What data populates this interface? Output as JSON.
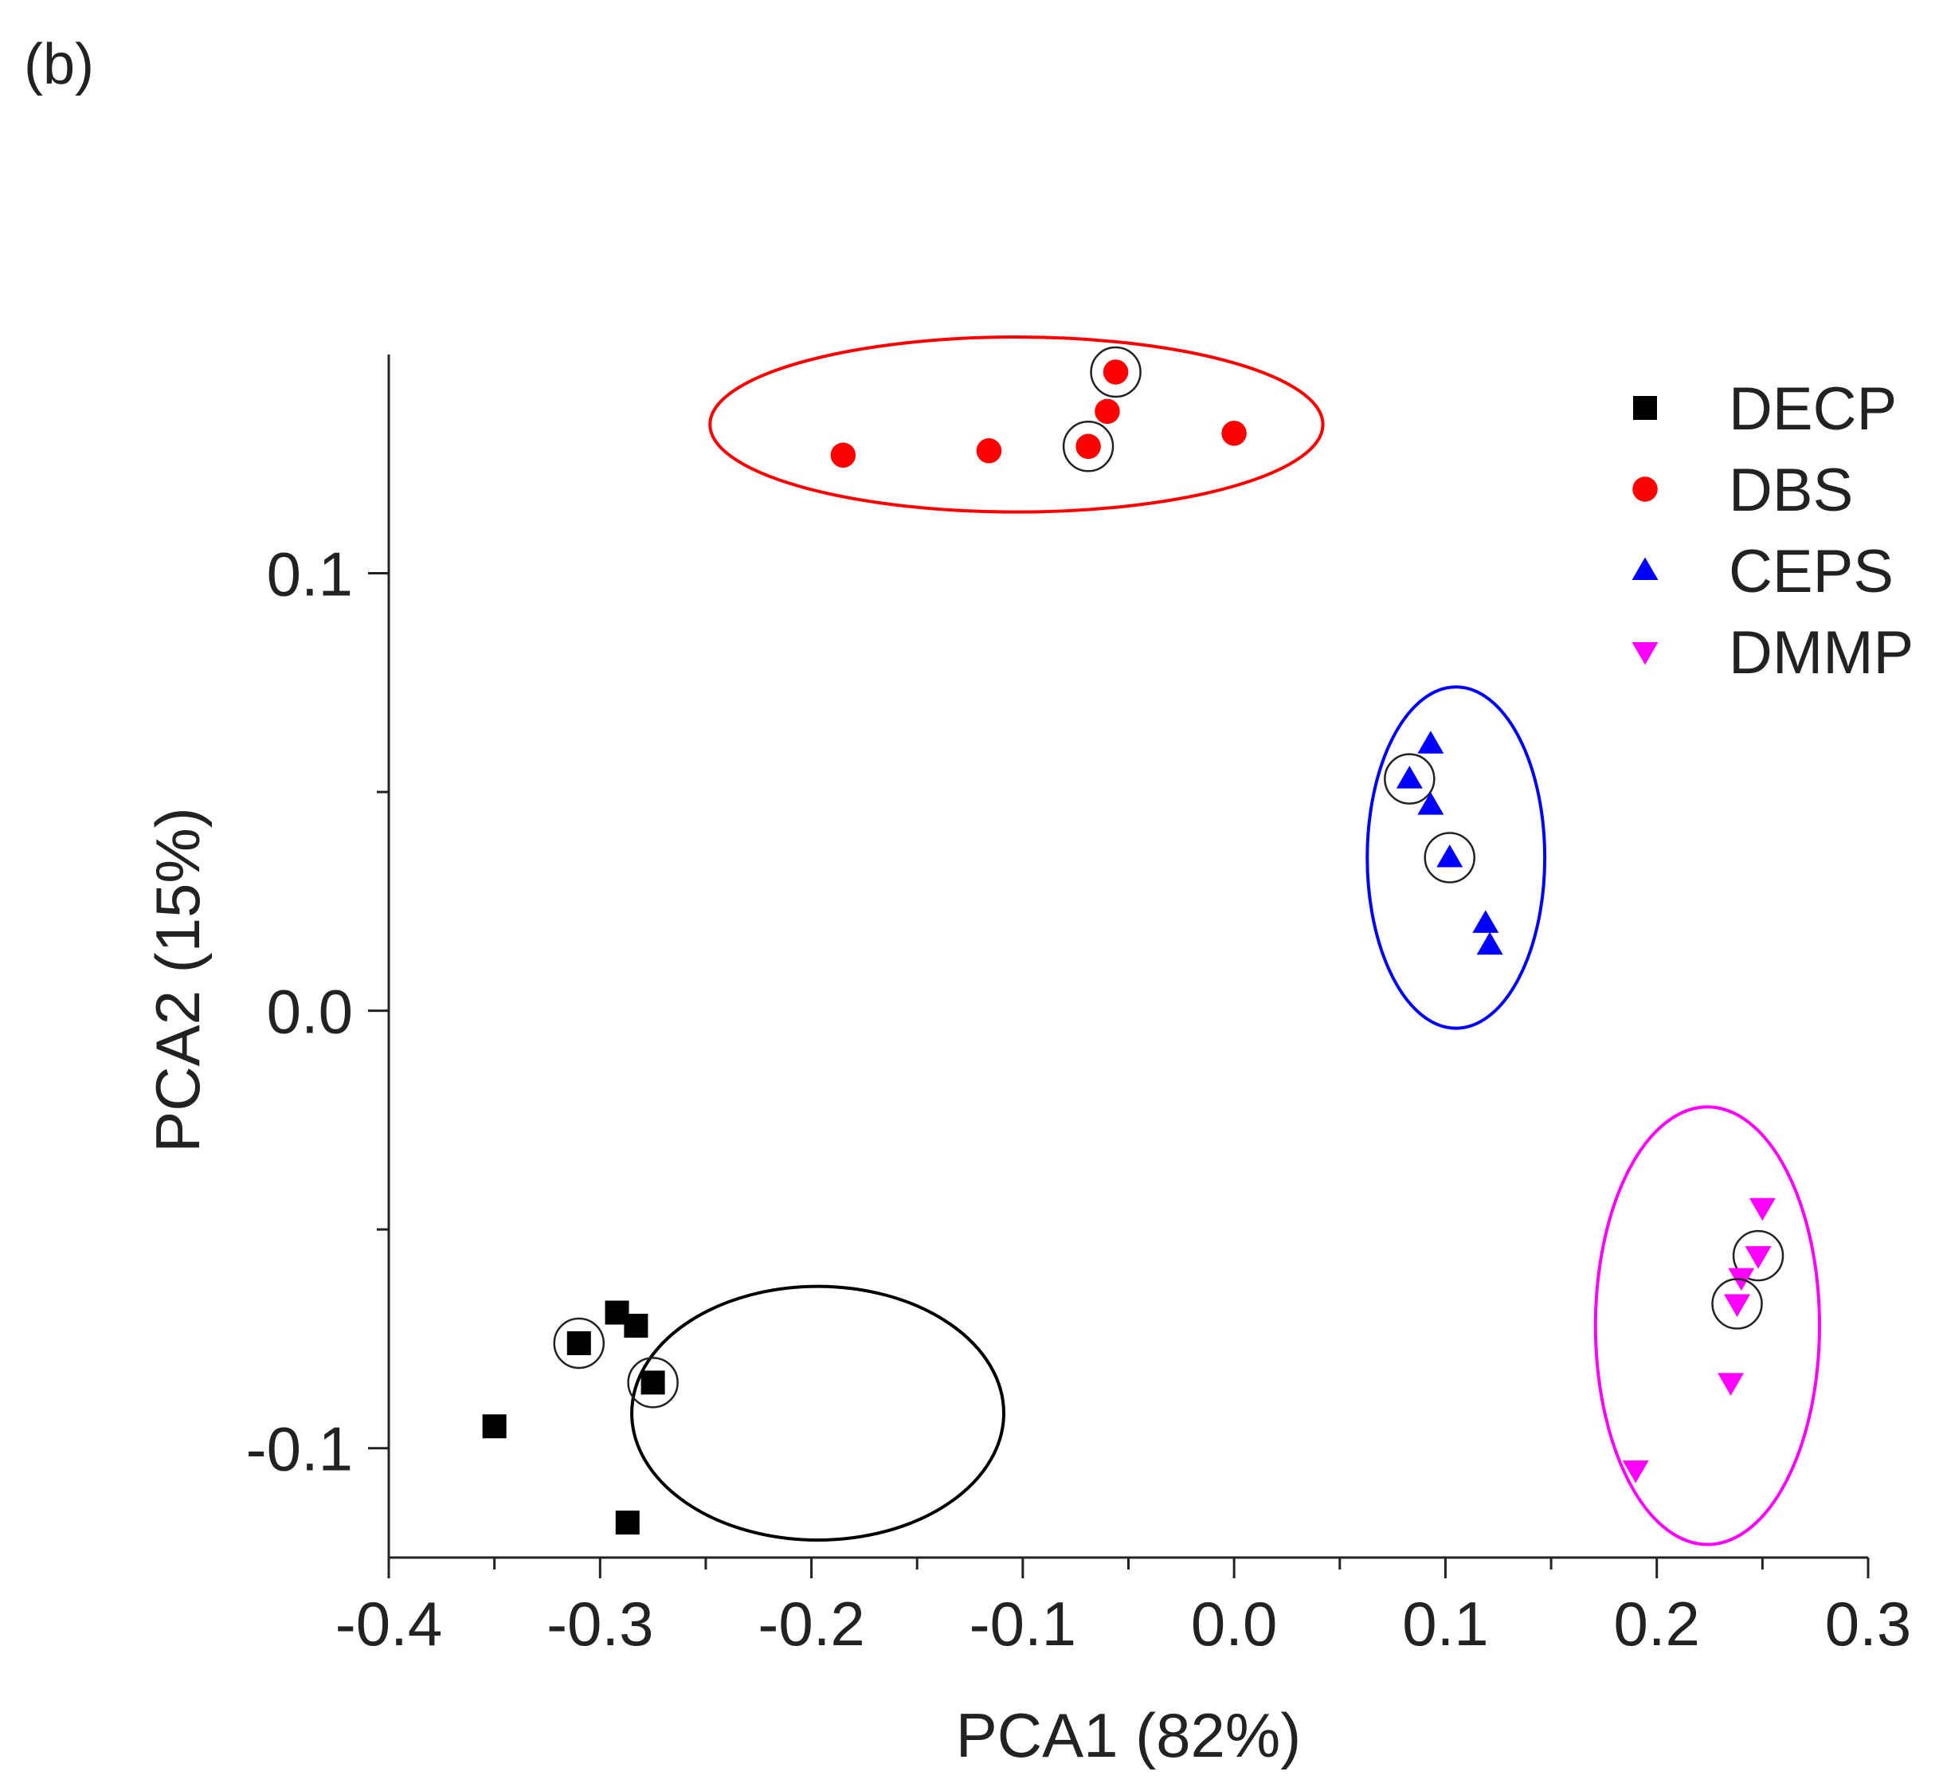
{
  "panel_label": "(b)",
  "chart_data": {
    "type": "scatter",
    "title": "",
    "xlabel": "PCA1 (82%)",
    "ylabel": "PCA2 (15%)",
    "xlim": [
      -0.4,
      0.3
    ],
    "ylim": [
      -0.125,
      0.15
    ],
    "xticks": [
      -0.4,
      -0.3,
      -0.2,
      -0.1,
      0.0,
      0.1,
      0.2,
      0.3
    ],
    "xtick_labels": [
      "-0.4",
      "-0.3",
      "-0.2",
      "-0.1",
      "0.0",
      "0.1",
      "0.2",
      "0.3"
    ],
    "xminor_ticks": [
      -0.35,
      -0.25,
      -0.15,
      -0.05,
      0.05,
      0.15,
      0.25
    ],
    "yticks": [
      -0.1,
      0.0,
      0.1
    ],
    "ytick_labels": [
      "-0.1",
      "0.0",
      "0.1"
    ],
    "yminor_ticks": [
      -0.05,
      0.05
    ],
    "grid": false,
    "legend_position": "top-right",
    "series": [
      {
        "name": "DECP",
        "marker": "square",
        "color": "#000000",
        "points": [
          [
            -0.35,
            -0.095
          ],
          [
            -0.31,
            -0.076
          ],
          [
            -0.292,
            -0.069
          ],
          [
            -0.283,
            -0.072
          ],
          [
            -0.275,
            -0.085
          ],
          [
            -0.287,
            -0.117
          ]
        ],
        "circled": [
          1,
          4
        ],
        "ellipse": {
          "cx": -0.197,
          "cy": -0.092,
          "rx": 0.088,
          "ry": 0.029,
          "color": "#000000"
        }
      },
      {
        "name": "DBS",
        "marker": "circle",
        "color": "#ff0000",
        "points": [
          [
            -0.185,
            0.127
          ],
          [
            -0.116,
            0.128
          ],
          [
            -0.069,
            0.129
          ],
          [
            -0.06,
            0.137
          ],
          [
            -0.056,
            0.146
          ],
          [
            0.0,
            0.132
          ]
        ],
        "circled": [
          2,
          4
        ],
        "ellipse": {
          "cx": -0.103,
          "cy": 0.134,
          "rx": 0.145,
          "ry": 0.02,
          "color": "#ff0000"
        }
      },
      {
        "name": "CEPS",
        "marker": "triangle-up",
        "color": "#0000ff",
        "points": [
          [
            0.093,
            0.061
          ],
          [
            0.083,
            0.053
          ],
          [
            0.093,
            0.047
          ],
          [
            0.102,
            0.035
          ],
          [
            0.119,
            0.02
          ],
          [
            0.121,
            0.015
          ]
        ],
        "circled": [
          1,
          3
        ],
        "ellipse": {
          "cx": 0.105,
          "cy": 0.035,
          "rx": 0.042,
          "ry": 0.039,
          "color": "#0000ff"
        }
      },
      {
        "name": "DMMP",
        "marker": "triangle-down",
        "color": "#ff00ff",
        "points": [
          [
            0.25,
            -0.045
          ],
          [
            0.248,
            -0.056
          ],
          [
            0.24,
            -0.061
          ],
          [
            0.238,
            -0.067
          ],
          [
            0.235,
            -0.085
          ],
          [
            0.19,
            -0.105
          ]
        ],
        "circled": [
          1,
          3
        ],
        "ellipse": {
          "cx": 0.224,
          "cy": -0.072,
          "rx": 0.053,
          "ry": 0.05,
          "color": "#ff00ff"
        }
      }
    ]
  }
}
